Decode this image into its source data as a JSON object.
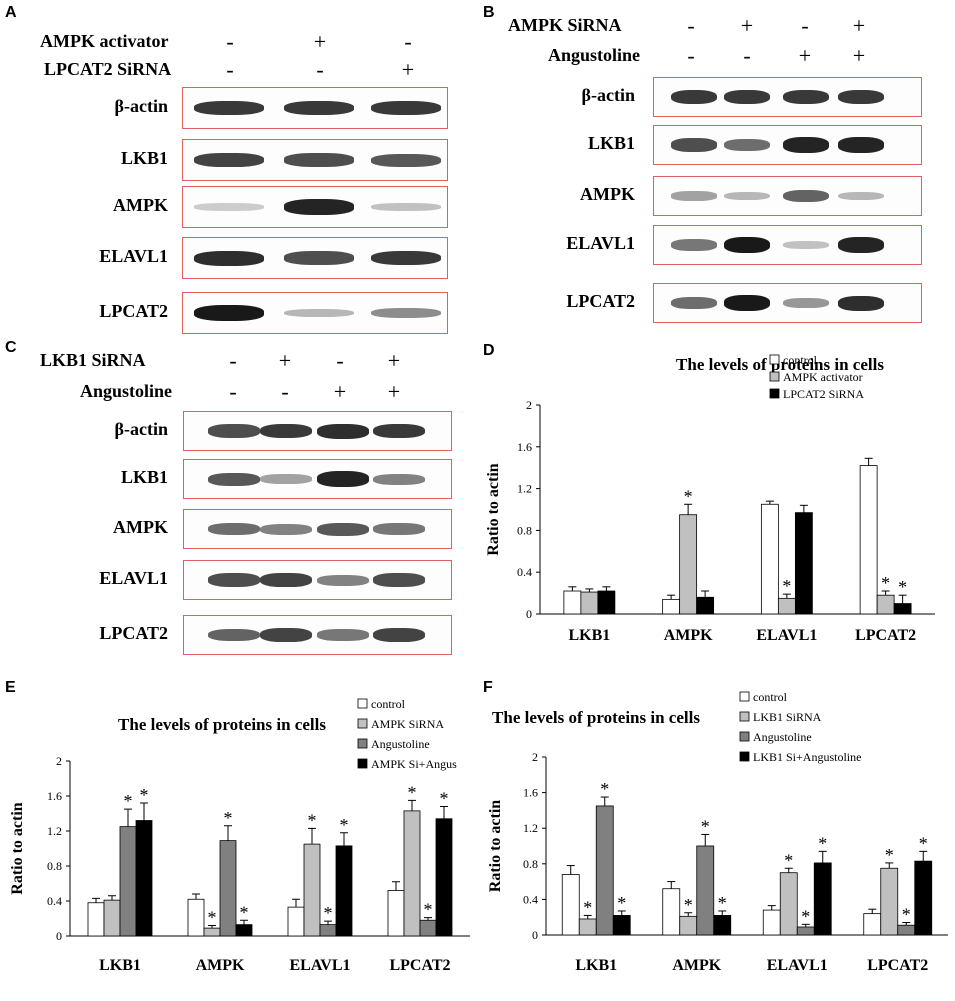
{
  "panels": {
    "A": {
      "label": "A",
      "treatments": [
        {
          "name": "AMPK activator",
          "signs": [
            "-",
            "+",
            "-"
          ]
        },
        {
          "name": "LPCAT2 SiRNA",
          "signs": [
            "-",
            "-",
            "+"
          ]
        }
      ],
      "rows": [
        {
          "name": "β-actin",
          "intensity": [
            0.85,
            0.85,
            0.85
          ]
        },
        {
          "name": "LKB1",
          "intensity": [
            0.8,
            0.75,
            0.7
          ]
        },
        {
          "name": "AMPK",
          "intensity": [
            0.15,
            0.95,
            0.2
          ]
        },
        {
          "name": "ELAVL1",
          "intensity": [
            0.9,
            0.75,
            0.85
          ]
        },
        {
          "name": "LPCAT2",
          "intensity": [
            1.0,
            0.25,
            0.45
          ]
        }
      ]
    },
    "B": {
      "label": "B",
      "treatments": [
        {
          "name": "AMPK SiRNA",
          "signs": [
            "-",
            "+",
            "-",
            "+"
          ]
        },
        {
          "name": "Angustoline",
          "signs": [
            "-",
            "-",
            "+",
            "+"
          ]
        }
      ],
      "rows": [
        {
          "name": "β-actin",
          "intensity": [
            0.85,
            0.85,
            0.85,
            0.85
          ]
        },
        {
          "name": "LKB1",
          "intensity": [
            0.75,
            0.6,
            0.95,
            0.95
          ]
        },
        {
          "name": "AMPK",
          "intensity": [
            0.35,
            0.25,
            0.65,
            0.25
          ]
        },
        {
          "name": "ELAVL1",
          "intensity": [
            0.55,
            1.0,
            0.2,
            0.95
          ]
        },
        {
          "name": "LPCAT2",
          "intensity": [
            0.6,
            1.0,
            0.4,
            0.9
          ]
        }
      ]
    },
    "C": {
      "label": "C",
      "treatments": [
        {
          "name": "LKB1 SiRNA",
          "signs": [
            "-",
            "+",
            "-",
            "+"
          ]
        },
        {
          "name": "Angustoline",
          "signs": [
            "-",
            "-",
            "+",
            "+"
          ]
        }
      ],
      "rows": [
        {
          "name": "β-actin",
          "intensity": [
            0.75,
            0.85,
            0.9,
            0.85
          ]
        },
        {
          "name": "LKB1",
          "intensity": [
            0.7,
            0.35,
            0.95,
            0.5
          ]
        },
        {
          "name": "AMPK",
          "intensity": [
            0.6,
            0.5,
            0.7,
            0.55
          ]
        },
        {
          "name": "ELAVL1",
          "intensity": [
            0.75,
            0.8,
            0.5,
            0.75
          ]
        },
        {
          "name": "LPCAT2",
          "intensity": [
            0.65,
            0.8,
            0.55,
            0.8
          ]
        }
      ]
    }
  },
  "chart_data": [
    {
      "panel": "D",
      "type": "bar",
      "title": "The levels of proteins in cells",
      "ylabel": "Ratio to actin",
      "xlabel": "",
      "ylim": [
        0,
        2
      ],
      "yticks": [
        "0",
        "0.4",
        "0.8",
        "1.2",
        "1.6",
        "2"
      ],
      "categories": [
        "LKB1",
        "AMPK",
        "ELAVL1",
        "LPCAT2"
      ],
      "series": [
        {
          "name": "control",
          "color": "#ffffff",
          "values": [
            0.22,
            0.14,
            1.05,
            1.42
          ],
          "errors": [
            0.04,
            0.04,
            0.03,
            0.07
          ],
          "sig": [
            false,
            false,
            false,
            false
          ]
        },
        {
          "name": "AMPK activator",
          "color": "#c0c0c0",
          "values": [
            0.21,
            0.95,
            0.15,
            0.18
          ],
          "errors": [
            0.03,
            0.1,
            0.04,
            0.04
          ],
          "sig": [
            false,
            true,
            true,
            true
          ]
        },
        {
          "name": "LPCAT2 SiRNA",
          "color": "#000000",
          "values": [
            0.22,
            0.16,
            0.97,
            0.1
          ],
          "errors": [
            0.04,
            0.06,
            0.07,
            0.08
          ],
          "sig": [
            false,
            false,
            false,
            true
          ]
        }
      ],
      "sig_marker": "*",
      "legend_position": "top-right"
    },
    {
      "panel": "E",
      "type": "bar",
      "title": "The levels of proteins in cells",
      "ylabel": "Ratio to actin",
      "xlabel": "",
      "ylim": [
        0,
        2
      ],
      "yticks": [
        "0",
        "0.4",
        "0.8",
        "1.2",
        "1.6",
        "2"
      ],
      "categories": [
        "LKB1",
        "AMPK",
        "ELAVL1",
        "LPCAT2"
      ],
      "series": [
        {
          "name": "control",
          "color": "#ffffff",
          "values": [
            0.38,
            0.42,
            0.33,
            0.52
          ],
          "errors": [
            0.05,
            0.06,
            0.09,
            0.1
          ],
          "sig": [
            false,
            false,
            false,
            false
          ]
        },
        {
          "name": "AMPK SiRNA",
          "color": "#c0c0c0",
          "values": [
            0.41,
            0.09,
            1.05,
            1.43
          ],
          "errors": [
            0.05,
            0.03,
            0.18,
            0.12
          ],
          "sig": [
            false,
            true,
            true,
            true
          ]
        },
        {
          "name": "Angustoline",
          "color": "#808080",
          "values": [
            1.25,
            1.09,
            0.13,
            0.18
          ],
          "errors": [
            0.2,
            0.17,
            0.04,
            0.03
          ],
          "sig": [
            true,
            true,
            true,
            true
          ]
        },
        {
          "name": "AMPK Si+Angus",
          "color": "#000000",
          "values": [
            1.32,
            0.13,
            1.03,
            1.34
          ],
          "errors": [
            0.2,
            0.05,
            0.15,
            0.14
          ],
          "sig": [
            true,
            true,
            true,
            true
          ]
        }
      ],
      "sig_marker": "*",
      "legend_position": "top-right"
    },
    {
      "panel": "F",
      "type": "bar",
      "title": "The levels of proteins in cells",
      "ylabel": "Ratio to actin",
      "xlabel": "",
      "ylim": [
        0,
        2
      ],
      "yticks": [
        "0",
        "0.4",
        "0.8",
        "1.2",
        "1.6",
        "2"
      ],
      "categories": [
        "LKB1",
        "AMPK",
        "ELAVL1",
        "LPCAT2"
      ],
      "series": [
        {
          "name": "control",
          "color": "#ffffff",
          "values": [
            0.68,
            0.52,
            0.28,
            0.24
          ],
          "errors": [
            0.1,
            0.08,
            0.05,
            0.05
          ],
          "sig": [
            false,
            false,
            false,
            false
          ]
        },
        {
          "name": "LKB1 SiRNA",
          "color": "#c0c0c0",
          "values": [
            0.18,
            0.21,
            0.7,
            0.75
          ],
          "errors": [
            0.04,
            0.04,
            0.05,
            0.06
          ],
          "sig": [
            true,
            true,
            true,
            true
          ]
        },
        {
          "name": "Angustoline",
          "color": "#808080",
          "values": [
            1.45,
            1.0,
            0.09,
            0.11
          ],
          "errors": [
            0.1,
            0.13,
            0.03,
            0.03
          ],
          "sig": [
            true,
            true,
            true,
            true
          ]
        },
        {
          "name": "LKB1 Si+Angustoline",
          "color": "#000000",
          "values": [
            0.22,
            0.22,
            0.81,
            0.83
          ],
          "errors": [
            0.05,
            0.05,
            0.13,
            0.11
          ],
          "sig": [
            true,
            true,
            true,
            true
          ]
        }
      ],
      "sig_marker": "*",
      "legend_position": "top-right"
    }
  ]
}
